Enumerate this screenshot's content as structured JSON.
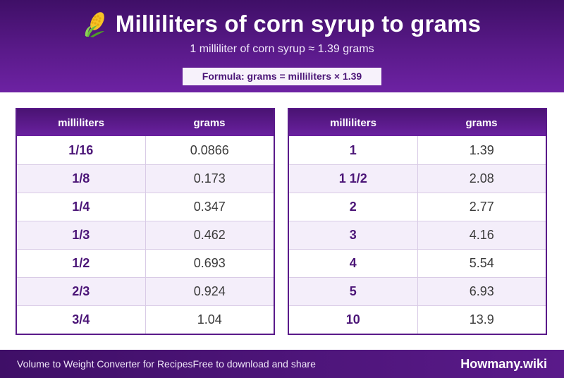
{
  "header": {
    "icon": "corn-icon",
    "title": "Milliliters of corn syrup to grams",
    "subtitle": "1 milliliter of corn syrup ≈ 1.39 grams",
    "formula": "Formula: grams = milliliters × 1.39"
  },
  "tables": [
    {
      "headers": [
        "milliliters",
        "grams"
      ],
      "rows": [
        [
          "1/16",
          "0.0866"
        ],
        [
          "1/8",
          "0.173"
        ],
        [
          "1/4",
          "0.347"
        ],
        [
          "1/3",
          "0.462"
        ],
        [
          "1/2",
          "0.693"
        ],
        [
          "2/3",
          "0.924"
        ],
        [
          "3/4",
          "1.04"
        ]
      ]
    },
    {
      "headers": [
        "milliliters",
        "grams"
      ],
      "rows": [
        [
          "1",
          "1.39"
        ],
        [
          "1 1/2",
          "2.08"
        ],
        [
          "2",
          "2.77"
        ],
        [
          "3",
          "4.16"
        ],
        [
          "4",
          "5.54"
        ],
        [
          "5",
          "6.93"
        ],
        [
          "10",
          "13.9"
        ]
      ]
    }
  ],
  "footer": {
    "left_text_1": "Volume to Weight Converter for Recipes",
    "left_text_2": "Free to download and share",
    "brand": "Howmany.wiki"
  },
  "colors": {
    "primary": "#5a1a8a",
    "accent_text": "#4b1577",
    "alt_row": "#f4eefa"
  }
}
